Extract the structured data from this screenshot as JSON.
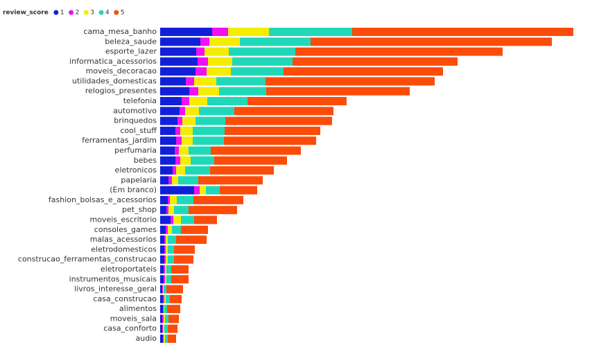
{
  "chart_data": {
    "type": "stacked-bar-horizontal",
    "legend_title": "review_score",
    "legend": "top-left",
    "categories": [
      "cama_mesa_banho",
      "beleza_saude",
      "esporte_lazer",
      "informatica_acessorios",
      "moveis_decoracao",
      "utilidades_domesticas",
      "relogios_presentes",
      "telefonia",
      "automotivo",
      "brinquedos",
      "cool_stuff",
      "ferramentas_jardim",
      "perfumaria",
      "bebes",
      "eletronicos",
      "papelaria",
      "(Em branco)",
      "fashion_bolsas_e_acessorios",
      "pet_shop",
      "moveis_escritorio",
      "consoles_games",
      "malas_acessorios",
      "eletrodomesticos",
      "construcao_ferramentas_construcao",
      "eletroportateis",
      "instrumentos_musicais",
      "livros_interesse_geral",
      "casa_construcao",
      "alimentos",
      "moveis_sala",
      "casa_conforto",
      "audio"
    ],
    "series": [
      {
        "name": "1",
        "color": "#1020d8",
        "values": [
          75,
          58,
          52,
          54,
          51,
          37,
          42,
          31,
          28,
          25,
          22,
          23,
          21,
          22,
          18,
          12,
          49,
          11,
          9,
          15,
          8,
          6,
          6,
          6,
          5,
          5,
          3,
          4,
          4,
          3,
          3,
          4
        ]
      },
      {
        "name": "2",
        "color": "#f010f0",
        "values": [
          23,
          13,
          12,
          15,
          16,
          12,
          13,
          11,
          8,
          7,
          7,
          8,
          6,
          7,
          5,
          5,
          8,
          3,
          3,
          4,
          3,
          2,
          2,
          2,
          2,
          2,
          1,
          2,
          1,
          2,
          1,
          1
        ]
      },
      {
        "name": "3",
        "color": "#f5ec00",
        "values": [
          59,
          44,
          35,
          35,
          35,
          32,
          30,
          26,
          20,
          19,
          18,
          16,
          14,
          15,
          13,
          9,
          9,
          10,
          8,
          11,
          6,
          3,
          3,
          3,
          2,
          2,
          1,
          2,
          1,
          2,
          2,
          2
        ]
      },
      {
        "name": "4",
        "color": "#20d8b8",
        "values": [
          120,
          102,
          96,
          87,
          76,
          71,
          68,
          58,
          51,
          43,
          46,
          45,
          32,
          34,
          36,
          29,
          20,
          24,
          21,
          19,
          13,
          12,
          9,
          9,
          7,
          7,
          4,
          6,
          4,
          5,
          5,
          4
        ]
      },
      {
        "name": "5",
        "color": "#fc4c0a",
        "values": [
          319,
          348,
          299,
          238,
          230,
          244,
          207,
          143,
          143,
          154,
          138,
          133,
          130,
          105,
          92,
          93,
          54,
          72,
          70,
          33,
          39,
          44,
          30,
          28,
          25,
          25,
          24,
          17,
          19,
          15,
          14,
          12
        ]
      }
    ]
  }
}
